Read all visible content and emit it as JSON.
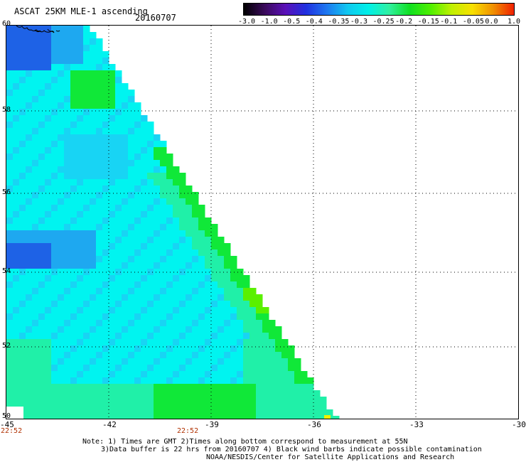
{
  "header": {
    "title": "ASCAT 25KM MLE-1 ascending",
    "date": "20160707"
  },
  "colorbar": {
    "labels": [
      "-3.0",
      "-1.0",
      "-0.5",
      "-0.4",
      "-0.35",
      "-0.3",
      "-0.25",
      "-0.2",
      "-0.15",
      "-0.1",
      "-0.05",
      "0.0",
      "1.0"
    ],
    "colors": [
      "#000000",
      "#3a0a5a",
      "#5a10b8",
      "#2030e0",
      "#1e78f0",
      "#10c8f0",
      "#00f0e8",
      "#30f0a0",
      "#10e020",
      "#50f000",
      "#c0f000",
      "#f8e000",
      "#f09000",
      "#f02000"
    ]
  },
  "map": {
    "lat_labels": [
      "60",
      "58",
      "56",
      "54",
      "52",
      "50"
    ],
    "lon_labels": [
      "-45",
      "-42",
      "-39",
      "-36",
      "-33",
      "-30"
    ],
    "time_labels": [
      "22:52",
      "22:52"
    ],
    "colors": {
      "deep_blue": "#1e62e6",
      "mid_blue": "#1ea8f0",
      "light_blue": "#18d4f4",
      "cyan": "#00f4f0",
      "aqua_green": "#20f0a8",
      "green": "#10e838",
      "lime": "#5af000",
      "yellow": "#f0f000"
    }
  },
  "notes": {
    "line1": "Note: 1) Times are GMT 2)Times along bottom correspond to measurement at 55N",
    "line2": "3)Data buffer is 22 hrs from 20160707 4) Black wind barbs indicate possible contamination",
    "line3": "NOAA/NESDIS/Center for Satellite Applications and Research"
  }
}
